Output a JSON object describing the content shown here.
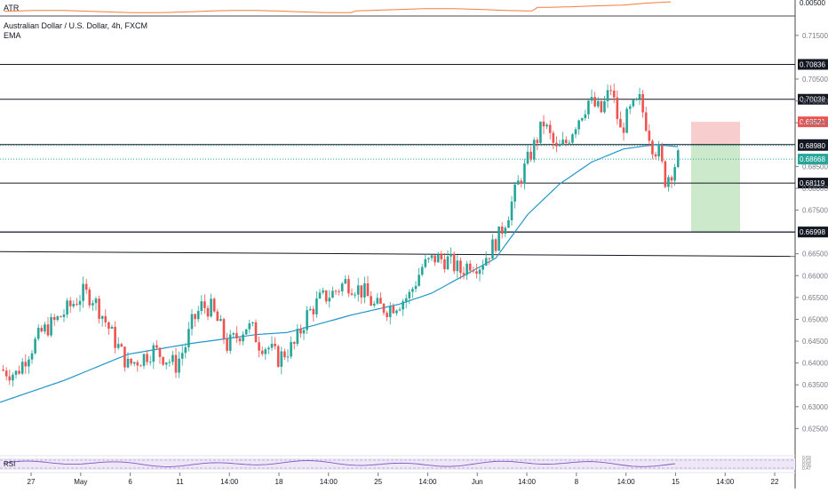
{
  "chart_data": {
    "type": "candlestick",
    "title": "Australian Dollar / U.S. Dollar, 4h, FXCM",
    "indicators": {
      "top": "ATR",
      "overlay": "EMA",
      "bottom": "RSI"
    },
    "atr_tick": "0.00500",
    "y_axis": {
      "min": 0.62,
      "max": 0.717,
      "ticks": [
        "0.71500",
        "0.70500",
        "0.70000",
        "0.69500",
        "0.68500",
        "0.68000",
        "0.67500",
        "0.66500",
        "0.66000",
        "0.65500",
        "0.65000",
        "0.64500",
        "0.64000",
        "0.63500",
        "0.63000",
        "0.62500"
      ]
    },
    "x_axis": {
      "labels": [
        "27",
        "May",
        "6",
        "11",
        "14:00",
        "18",
        "14:00",
        "25",
        "14:00",
        "Jun",
        "14:00",
        "8",
        "14:00",
        "15",
        "14:00",
        "22"
      ]
    },
    "levels": [
      {
        "price": 0.70836,
        "label": "0.70836"
      },
      {
        "price": 0.70038,
        "label": "0.70038"
      },
      {
        "price": 0.69,
        "label": "0.69000"
      },
      {
        "price": 0.68119,
        "label": "0.68119"
      },
      {
        "price": 0.67001,
        "label": "0.67001"
      },
      {
        "price": 0.66998,
        "label": "0.66998"
      }
    ],
    "trendline": {
      "from": 0.6655,
      "to": 0.6644
    },
    "stop_level": {
      "price": 0.69521,
      "label": "0.69521"
    },
    "target_level": {
      "price": 0.67001,
      "label": "0.67001"
    },
    "current_prices": [
      {
        "price": 0.6898,
        "label": "0.68980"
      },
      {
        "price": 0.68668,
        "label": "0.68668"
      }
    ],
    "close_path": [
      [
        0,
        0.6385
      ],
      [
        5,
        0.6375
      ],
      [
        9,
        0.6425
      ],
      [
        13,
        0.647
      ],
      [
        18,
        0.65
      ],
      [
        22,
        0.653
      ],
      [
        26,
        0.656
      ],
      [
        29,
        0.655
      ],
      [
        32,
        0.651
      ],
      [
        36,
        0.645
      ],
      [
        40,
        0.6395
      ],
      [
        44,
        0.641
      ],
      [
        48,
        0.643
      ],
      [
        52,
        0.641
      ],
      [
        55,
        0.6395
      ],
      [
        58,
        0.644
      ],
      [
        60,
        0.649
      ],
      [
        63,
        0.653
      ],
      [
        66,
        0.6525
      ],
      [
        69,
        0.648
      ],
      [
        71,
        0.644
      ],
      [
        74,
        0.646
      ],
      [
        77,
        0.6485
      ],
      [
        79,
        0.6475
      ],
      [
        81,
        0.6445
      ],
      [
        84,
        0.6435
      ],
      [
        87,
        0.641
      ],
      [
        90,
        0.643
      ],
      [
        92,
        0.644
      ],
      [
        96,
        0.651
      ],
      [
        100,
        0.6545
      ],
      [
        104,
        0.656
      ],
      [
        108,
        0.6585
      ],
      [
        111,
        0.6575
      ],
      [
        114,
        0.656
      ],
      [
        117,
        0.653
      ],
      [
        121,
        0.6525
      ],
      [
        125,
        0.654
      ],
      [
        128,
        0.6555
      ],
      [
        132,
        0.662
      ],
      [
        136,
        0.664
      ],
      [
        140,
        0.6635
      ],
      [
        144,
        0.661
      ],
      [
        147,
        0.663
      ],
      [
        150,
        0.6625
      ],
      [
        153,
        0.6655
      ],
      [
        156,
        0.669
      ],
      [
        159,
        0.6745
      ],
      [
        162,
        0.681
      ],
      [
        166,
        0.688
      ],
      [
        170,
        0.695
      ],
      [
        174,
        0.6885
      ],
      [
        177,
        0.6905
      ],
      [
        180,
        0.695
      ],
      [
        184,
        0.7
      ],
      [
        188,
        0.6975
      ],
      [
        191,
        0.703
      ],
      [
        194,
        0.693
      ],
      [
        197,
        0.6975
      ],
      [
        200,
        0.7
      ],
      [
        202,
        0.695
      ],
      [
        204,
        0.69
      ],
      [
        206,
        0.688
      ],
      [
        208,
        0.682
      ],
      [
        210,
        0.684
      ],
      [
        212,
        0.687
      ]
    ],
    "ema_path": [
      [
        0,
        0.631
      ],
      [
        20,
        0.636
      ],
      [
        40,
        0.642
      ],
      [
        60,
        0.6445
      ],
      [
        80,
        0.6465
      ],
      [
        90,
        0.647
      ],
      [
        110,
        0.651
      ],
      [
        125,
        0.6535
      ],
      [
        135,
        0.656
      ],
      [
        145,
        0.66
      ],
      [
        155,
        0.664
      ],
      [
        165,
        0.674
      ],
      [
        175,
        0.681
      ],
      [
        185,
        0.686
      ],
      [
        195,
        0.689
      ],
      [
        205,
        0.69
      ],
      [
        212,
        0.6895
      ]
    ],
    "rsi_ticks": [
      "0.59",
      "0.63",
      "0.56",
      "0.47"
    ]
  }
}
